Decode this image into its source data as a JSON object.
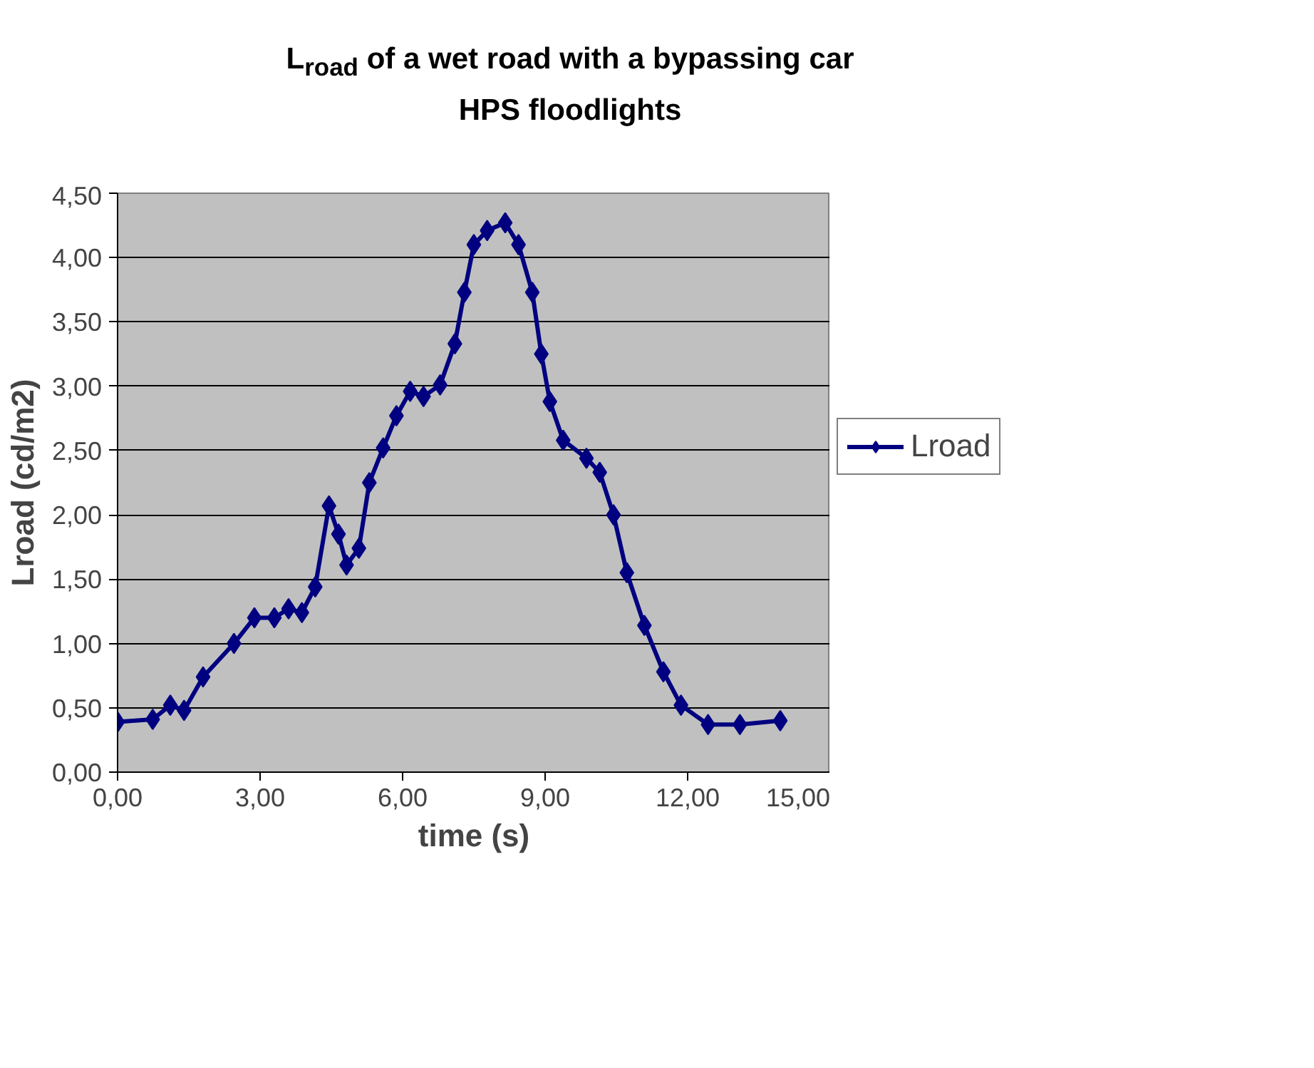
{
  "chart_data": {
    "type": "line",
    "title": "L$_{road}$ of a wet road with a bypassing car",
    "subtitle": "HPS floodlights",
    "xlabel": "time (s)",
    "ylabel": "Lroad (cd/m2)",
    "xlim": [
      0,
      15
    ],
    "xticks": [
      {
        "value": 0,
        "label": "0,00"
      },
      {
        "value": 3,
        "label": "3,00"
      },
      {
        "value": 6,
        "label": "6,00"
      },
      {
        "value": 9,
        "label": "9,00"
      },
      {
        "value": 12,
        "label": "12,00"
      },
      {
        "value": 15,
        "label": "15,00"
      }
    ],
    "ylim": [
      0,
      4.5
    ],
    "yticks": [
      {
        "value": 0,
        "label": "0,00"
      },
      {
        "value": 0.5,
        "label": "0,50"
      },
      {
        "value": 1,
        "label": "1,00"
      },
      {
        "value": 1.5,
        "label": "1,50"
      },
      {
        "value": 2,
        "label": "2,00"
      },
      {
        "value": 2.5,
        "label": "2,50"
      },
      {
        "value": 3,
        "label": "3,00"
      },
      {
        "value": 3.5,
        "label": "3,50"
      },
      {
        "value": 4,
        "label": "4,00"
      },
      {
        "value": 4.5,
        "label": "4,50"
      }
    ],
    "grid": "y",
    "legend": "right",
    "marker": "diamond",
    "line_style": "solid",
    "series": [
      {
        "name": "Lroad",
        "color": "#000080",
        "x": [
          0,
          0.74,
          1.11,
          1.4,
          1.8,
          2.45,
          2.88,
          3.3,
          3.6,
          3.88,
          4.16,
          4.45,
          4.65,
          4.82,
          5.08,
          5.3,
          5.59,
          5.87,
          6.16,
          6.44,
          6.79,
          7.1,
          7.3,
          7.5,
          7.78,
          8.16,
          8.44,
          8.73,
          8.92,
          9.1,
          9.38,
          9.87,
          10.15,
          10.44,
          10.72,
          11.09,
          11.49,
          11.86,
          12.43,
          13.1,
          13.95
        ],
        "values": [
          0.39,
          0.41,
          0.52,
          0.48,
          0.74,
          1.0,
          1.2,
          1.2,
          1.27,
          1.24,
          1.44,
          2.07,
          1.85,
          1.61,
          1.74,
          2.25,
          2.52,
          2.77,
          2.96,
          2.92,
          3.01,
          3.33,
          3.73,
          4.1,
          4.21,
          4.27,
          4.1,
          3.73,
          3.25,
          2.88,
          2.58,
          2.44,
          2.33,
          2.0,
          1.55,
          1.14,
          0.78,
          0.52,
          0.37,
          0.37,
          0.4
        ]
      }
    ]
  }
}
